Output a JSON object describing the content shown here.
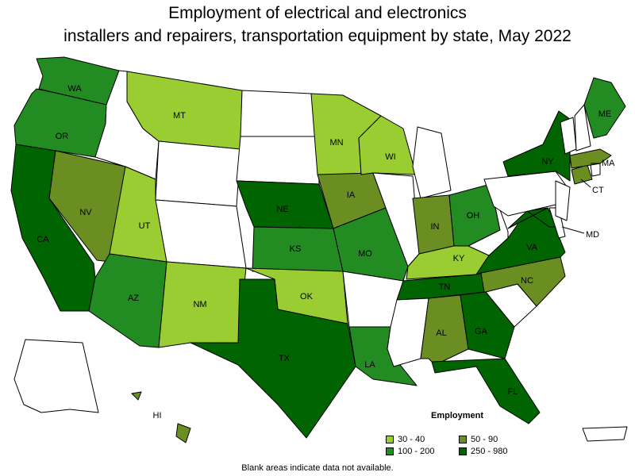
{
  "title_lines": [
    "Employment of electrical and electronics",
    "installers and repairers, transportation equipment by state, May 2022"
  ],
  "colors": {
    "blank": "#ffffff",
    "c30_40": "#9acd32",
    "c50_90": "#6b8e23",
    "c100_200": "#228b22",
    "c250_980": "#006400"
  },
  "legend": {
    "title": "Employment",
    "items": [
      {
        "label": "30 - 40",
        "color_key": "c30_40"
      },
      {
        "label": "50 - 90",
        "color_key": "c50_90"
      },
      {
        "label": "100 - 200",
        "color_key": "c100_200"
      },
      {
        "label": "250 - 980",
        "color_key": "c250_980"
      }
    ]
  },
  "states": [
    {
      "abbr": "WA",
      "class": "c100_200"
    },
    {
      "abbr": "OR",
      "class": "c100_200"
    },
    {
      "abbr": "CA",
      "class": "c250_980"
    },
    {
      "abbr": "NV",
      "class": "c50_90"
    },
    {
      "abbr": "ID",
      "class": "blank"
    },
    {
      "abbr": "MT",
      "class": "c30_40"
    },
    {
      "abbr": "WY",
      "class": "blank"
    },
    {
      "abbr": "UT",
      "class": "c30_40"
    },
    {
      "abbr": "AZ",
      "class": "c100_200"
    },
    {
      "abbr": "CO",
      "class": "blank"
    },
    {
      "abbr": "NM",
      "class": "c30_40"
    },
    {
      "abbr": "ND",
      "class": "blank"
    },
    {
      "abbr": "SD",
      "class": "blank"
    },
    {
      "abbr": "NE",
      "class": "c250_980"
    },
    {
      "abbr": "KS",
      "class": "c100_200"
    },
    {
      "abbr": "OK",
      "class": "c30_40"
    },
    {
      "abbr": "TX",
      "class": "c250_980"
    },
    {
      "abbr": "MN",
      "class": "c30_40"
    },
    {
      "abbr": "IA",
      "class": "c50_90"
    },
    {
      "abbr": "MO",
      "class": "c100_200"
    },
    {
      "abbr": "AR",
      "class": "blank"
    },
    {
      "abbr": "LA",
      "class": "c100_200"
    },
    {
      "abbr": "WI",
      "class": "c30_40"
    },
    {
      "abbr": "IL",
      "class": "blank"
    },
    {
      "abbr": "MI",
      "class": "blank"
    },
    {
      "abbr": "IN",
      "class": "c50_90"
    },
    {
      "abbr": "OH",
      "class": "c100_200"
    },
    {
      "abbr": "KY",
      "class": "c30_40"
    },
    {
      "abbr": "TN",
      "class": "c250_980"
    },
    {
      "abbr": "MS",
      "class": "blank"
    },
    {
      "abbr": "AL",
      "class": "c50_90"
    },
    {
      "abbr": "GA",
      "class": "c250_980"
    },
    {
      "abbr": "FL",
      "class": "c250_980"
    },
    {
      "abbr": "SC",
      "class": "blank"
    },
    {
      "abbr": "NC",
      "class": "c50_90"
    },
    {
      "abbr": "VA",
      "class": "c250_980"
    },
    {
      "abbr": "WV",
      "class": "blank"
    },
    {
      "abbr": "MD",
      "class": "c250_980"
    },
    {
      "abbr": "DE",
      "class": "blank"
    },
    {
      "abbr": "PA",
      "class": "blank"
    },
    {
      "abbr": "NJ",
      "class": "blank"
    },
    {
      "abbr": "NY",
      "class": "c250_980"
    },
    {
      "abbr": "CT",
      "class": "c50_90"
    },
    {
      "abbr": "RI",
      "class": "blank"
    },
    {
      "abbr": "MA",
      "class": "c50_90"
    },
    {
      "abbr": "VT",
      "class": "blank"
    },
    {
      "abbr": "NH",
      "class": "blank"
    },
    {
      "abbr": "ME",
      "class": "c100_200"
    },
    {
      "abbr": "AK",
      "class": "blank"
    },
    {
      "abbr": "HI",
      "class": "c50_90"
    },
    {
      "abbr": "PR",
      "class": "blank"
    }
  ],
  "map_labels": [
    "WA",
    "OR",
    "CA",
    "NV",
    "MT",
    "UT",
    "AZ",
    "NM",
    "NE",
    "KS",
    "OK",
    "TX",
    "MN",
    "IA",
    "MO",
    "LA",
    "WI",
    "IN",
    "OH",
    "KY",
    "TN",
    "AL",
    "GA",
    "FL",
    "NC",
    "VA",
    "NY",
    "ME",
    "MA",
    "CT",
    "MD",
    "HI"
  ],
  "footnote": "Blank areas indicate data not available."
}
